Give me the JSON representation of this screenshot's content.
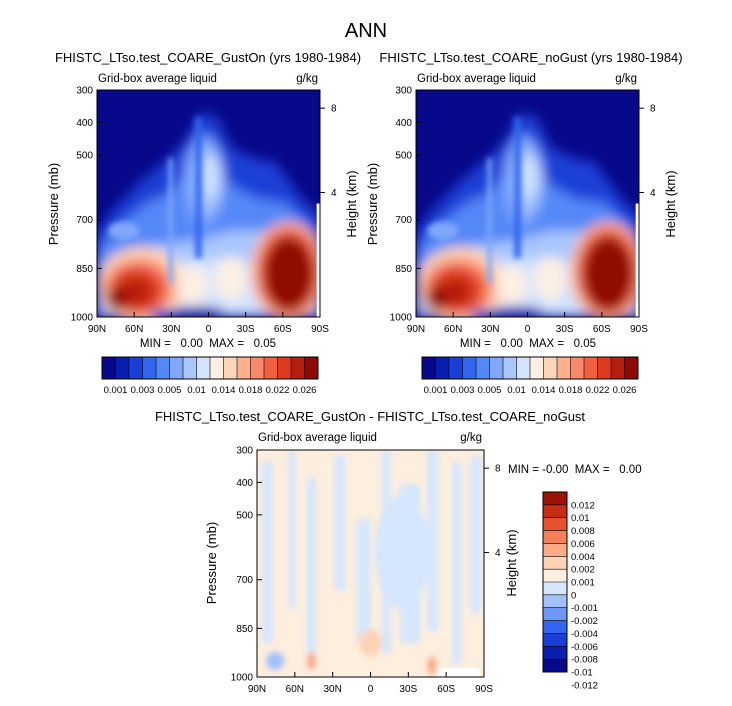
{
  "figure": {
    "title": "ANN"
  },
  "colors": {
    "seq": [
      "#08088a",
      "#0a1fb0",
      "#1a3fd6",
      "#3366ee",
      "#5588f7",
      "#7fa7fb",
      "#a9c6fd",
      "#d3e3fe",
      "#fdf0e3",
      "#fdd5b8",
      "#fcb08e",
      "#f9886a",
      "#f2613f",
      "#dd3a1f",
      "#b81e10",
      "#8e0b05"
    ],
    "diff": [
      "#08088a",
      "#0a1fb0",
      "#1a3fd6",
      "#3366ee",
      "#6f97f6",
      "#a4c0fb",
      "#d5e6fd",
      "#fdeede",
      "#fdd3b7",
      "#fbab88",
      "#f57f5a",
      "#e6522f",
      "#c62d14",
      "#9e1308"
    ]
  },
  "chart_data": [
    {
      "type": "heatmap",
      "id": "panel1",
      "title": "FHISTC_LTso.test_COARE_GustOn (yrs 1980-1984)",
      "subtitle_left": "Grid-box average liquid",
      "subtitle_right": "g/kg",
      "ylabel": "Pressure (mb)",
      "ylabel_right": "Height (km)",
      "x_ticks": [
        "90N",
        "60N",
        "30N",
        "0",
        "30S",
        "60S",
        "90S"
      ],
      "x_tick_vals": [
        90,
        60,
        30,
        0,
        -30,
        -60,
        -90
      ],
      "xlim": [
        90,
        -90
      ],
      "y_ticks": [
        "300",
        "400",
        "500",
        "700",
        "850",
        "1000"
      ],
      "y_tick_vals": [
        300,
        400,
        500,
        700,
        850,
        1000
      ],
      "ylim": [
        300,
        1000
      ],
      "y_right_ticks": [
        "8",
        "4"
      ],
      "y_right_tick_vals": [
        356,
        616
      ],
      "stats": "MIN =   0.00  MAX =   0.05",
      "colorbar_labels": [
        "0.001",
        "0.003",
        "0.005",
        "0.01",
        "0.014",
        "0.018",
        "0.022",
        "0.026"
      ],
      "colorbar_levels": [
        0.001,
        0.002,
        0.003,
        0.004,
        0.005,
        0.0075,
        0.01,
        0.012,
        0.014,
        0.016,
        0.018,
        0.02,
        0.022,
        0.024,
        0.026
      ]
    },
    {
      "type": "heatmap",
      "id": "panel2",
      "title": "FHISTC_LTso.test_COARE_noGust (yrs 1980-1984)",
      "subtitle_left": "Grid-box average liquid",
      "subtitle_right": "g/kg",
      "ylabel": "Pressure (mb)",
      "ylabel_right": "Height (km)",
      "x_ticks": [
        "90N",
        "60N",
        "30N",
        "0",
        "30S",
        "60S",
        "90S"
      ],
      "x_tick_vals": [
        90,
        60,
        30,
        0,
        -30,
        -60,
        -90
      ],
      "xlim": [
        90,
        -90
      ],
      "y_ticks": [
        "300",
        "400",
        "500",
        "700",
        "850",
        "1000"
      ],
      "y_tick_vals": [
        300,
        400,
        500,
        700,
        850,
        1000
      ],
      "ylim": [
        300,
        1000
      ],
      "y_right_ticks": [
        "8",
        "4"
      ],
      "y_right_tick_vals": [
        356,
        616
      ],
      "stats": "MIN =   0.00  MAX =   0.05",
      "colorbar_labels": [
        "0.001",
        "0.003",
        "0.005",
        "0.01",
        "0.014",
        "0.018",
        "0.022",
        "0.026"
      ],
      "colorbar_levels": [
        0.001,
        0.002,
        0.003,
        0.004,
        0.005,
        0.0075,
        0.01,
        0.012,
        0.014,
        0.016,
        0.018,
        0.02,
        0.022,
        0.024,
        0.026
      ]
    },
    {
      "type": "heatmap",
      "id": "panel3",
      "title": "FHISTC_LTso.test_COARE_GustOn - FHISTC_LTso.test_COARE_noGust",
      "subtitle_left": "Grid-box average liquid",
      "subtitle_right": "g/kg",
      "ylabel": "Pressure (mb)",
      "ylabel_right": "Height (km)",
      "x_ticks": [
        "90N",
        "60N",
        "30N",
        "0",
        "30S",
        "60S",
        "90S"
      ],
      "x_tick_vals": [
        90,
        60,
        30,
        0,
        -30,
        -60,
        -90
      ],
      "xlim": [
        90,
        -90
      ],
      "y_ticks": [
        "300",
        "400",
        "500",
        "700",
        "850",
        "1000"
      ],
      "y_tick_vals": [
        300,
        400,
        500,
        700,
        850,
        1000
      ],
      "ylim": [
        300,
        1000
      ],
      "y_right_ticks": [
        "8",
        "4"
      ],
      "y_right_tick_vals": [
        356,
        616
      ],
      "stats": "MIN = -0.00  MAX =   0.00",
      "colorbar_labels": [
        "0.012",
        "0.01",
        "0.008",
        "0.006",
        "0.004",
        "0.002",
        "0.001",
        "0",
        "-0.001",
        "-0.002",
        "-0.004",
        "-0.006",
        "-0.008",
        "-0.01",
        "-0.012"
      ],
      "colorbar_levels": [
        0.012,
        0.01,
        0.008,
        0.006,
        0.004,
        0.002,
        0.001,
        0,
        -0.001,
        -0.002,
        -0.004,
        -0.006,
        -0.008,
        -0.01,
        -0.012
      ]
    }
  ]
}
